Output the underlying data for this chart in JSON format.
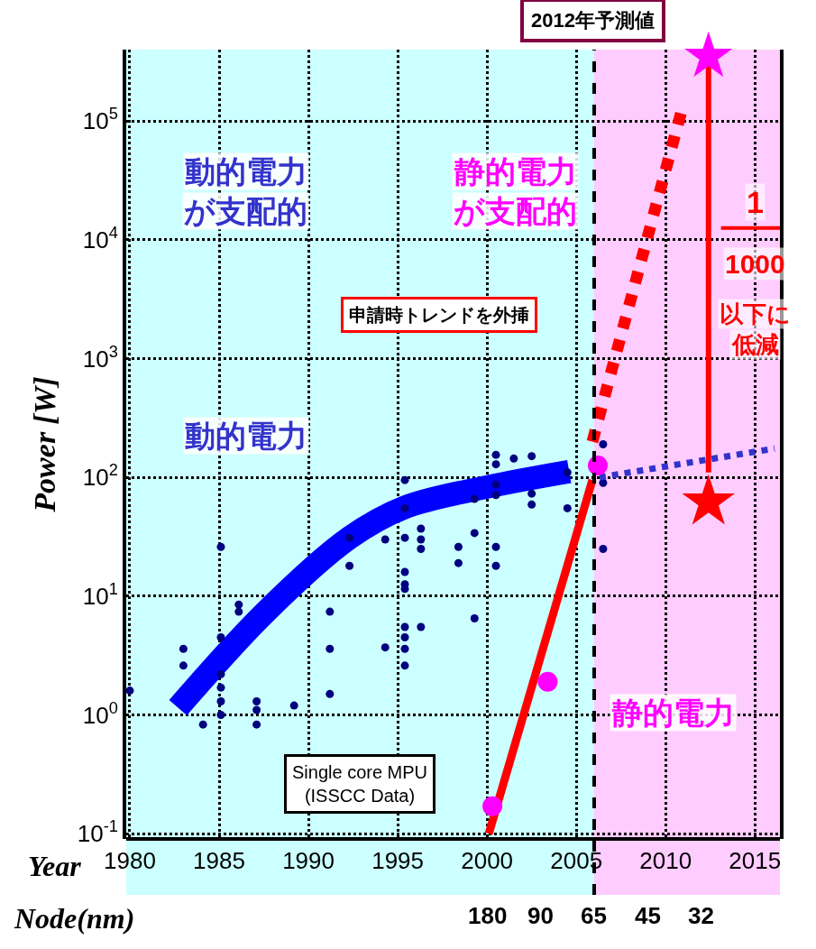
{
  "chart_data": {
    "type": "scatter",
    "title": "2012年予測値",
    "xlabel": "Year",
    "ylabel": "Power [W]",
    "xlim": [
      1979.8,
      2016.4
    ],
    "xticks": [
      1980,
      1985,
      1990,
      1995,
      2000,
      2005,
      2010,
      2015
    ],
    "ylim": [
      0.09,
      400000
    ],
    "log": "y",
    "yticks": [
      {
        "value": 0.1,
        "label": "10$^{-1}$"
      },
      {
        "value": 1,
        "label": "10$^{0}$"
      },
      {
        "value": 10,
        "label": "10$^{1}$"
      },
      {
        "value": 100,
        "label": "10$^{2}$"
      },
      {
        "value": 1000,
        "label": "10$^{3}$"
      },
      {
        "value": 10000,
        "label": "10$^{4}$"
      },
      {
        "value": 100000,
        "label": "10$^{5}$"
      }
    ],
    "grid": true,
    "bands": [
      {
        "axis": "x",
        "from": 1979.8,
        "to": 2006,
        "color": "#ccffff"
      },
      {
        "axis": "x",
        "from": 2006,
        "to": 2016.4,
        "color": "#ffccff"
      }
    ],
    "ref_lines": [
      {
        "axis": "x",
        "value": 2006,
        "color": "#000000",
        "line_style": "dashed"
      }
    ],
    "series": [
      {
        "type": "line",
        "color": "#0000ff",
        "marker": "none",
        "line_style": "solid",
        "x": [
          1982.7,
          1987.5,
          1992.3,
          1995.4,
          2000.0,
          2004.6
        ],
        "values": [
          1.15,
          7.1,
          31,
          56,
          83,
          112
        ]
      },
      {
        "color": "#000080",
        "marker": "circle",
        "x": [
          1985.1,
          1986.1,
          1986.1,
          1985.1,
          1983.0,
          1983.0,
          1985.1,
          1985.1,
          1985.1,
          1985.1,
          1984.1,
          1987.1,
          1987.1,
          1987.1,
          1989.2,
          1980.0,
          1991.2,
          1991.2,
          1991.2,
          1992.3,
          1992.3,
          1994.3,
          1994.3,
          1995.4,
          1995.4,
          1995.4,
          1995.4,
          1995.4,
          1995.4,
          1995.4,
          1995.4,
          1995.4,
          1995.4,
          1996.3,
          1996.3,
          1996.3,
          1996.3,
          1998.4,
          1998.4,
          1999.3,
          1999.3,
          1999.3,
          2000.5,
          2000.5,
          2000.5,
          2000.5,
          2000.5,
          2000.5,
          2001.5,
          2002.5,
          2002.5,
          2002.5,
          2004.5,
          2004.5,
          2006.5,
          2006.5,
          2006.5
        ],
        "values": [
          26,
          8.5,
          7.4,
          4.5,
          3.6,
          2.6,
          2.2,
          1.7,
          1.3,
          1.0,
          0.83,
          1.3,
          1.1,
          0.83,
          1.2,
          1.6,
          7.4,
          3.6,
          1.5,
          31,
          18,
          30,
          3.7,
          95,
          55,
          31,
          16,
          12.6,
          11.5,
          5.5,
          4.5,
          3.6,
          2.6,
          37,
          30,
          25,
          5.5,
          26,
          19,
          66,
          34,
          6.5,
          155,
          129,
          87,
          71,
          26,
          18,
          144,
          151,
          73,
          59,
          110,
          55,
          190,
          90,
          25
        ]
      },
      {
        "type": "line",
        "color": "#ff0000",
        "marker": "none",
        "line_style": "solid",
        "x": [
          2000.1,
          2005.9
        ],
        "values": [
          0.1,
          95
        ]
      },
      {
        "type": "line",
        "color": "#ff0000",
        "marker": "none",
        "line_style": "dotted",
        "x": [
          2005.9,
          2011.0
        ],
        "values": [
          200,
          140000
        ]
      },
      {
        "type": "line",
        "color": "#3333cc",
        "marker": "none",
        "line_style": "dotted",
        "x": [
          2006.3,
          2016.1
        ],
        "values": [
          100,
          175
        ]
      },
      {
        "type": "line",
        "color": "#ff0000",
        "marker": "none",
        "line_style": "solid",
        "x": [
          2012.4,
          2012.4
        ],
        "values": [
          300000,
          110
        ]
      },
      {
        "color": "#ff00ff",
        "marker": "circle",
        "x": [
          2000.3,
          2003.4,
          2006.2
        ],
        "values": [
          0.17,
          1.9,
          126
        ]
      },
      {
        "color": "#ff00ff",
        "marker": "star",
        "x": [
          2012.4
        ],
        "values": [
          350000
        ]
      },
      {
        "color": "#ff0000",
        "marker": "star",
        "x": [
          2012.4
        ],
        "values": [
          62
        ]
      }
    ],
    "annotations": [
      "動的電力",
      "が支配的",
      "静的電力",
      "が支配的",
      "申請時トレンドを外挿",
      "1",
      "1000",
      "以下に",
      "低減",
      "動的電力",
      "静的電力",
      "Single core MPU\n(ISSCC Data)",
      "Node(nm)",
      "180",
      "90",
      "65",
      "45",
      "32"
    ]
  }
}
